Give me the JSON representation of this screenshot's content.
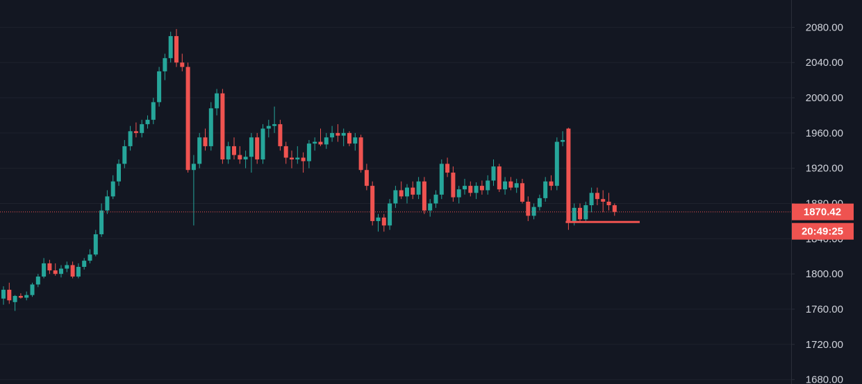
{
  "chart_data": {
    "type": "candlestick",
    "ylim": [
      1675,
      2111
    ],
    "yticks": [
      {
        "value": 1680,
        "label": "1680.00"
      },
      {
        "value": 1720,
        "label": "1720.00"
      },
      {
        "value": 1760,
        "label": "1760.00"
      },
      {
        "value": 1800,
        "label": "1800.00"
      },
      {
        "value": 1840,
        "label": "1840.00"
      },
      {
        "value": 1880,
        "label": "1880.00"
      },
      {
        "value": 1920,
        "label": "1920.00"
      },
      {
        "value": 1960,
        "label": "1960.00"
      },
      {
        "value": 2000,
        "label": "2000.00"
      },
      {
        "value": 2040,
        "label": "2040.00"
      },
      {
        "value": 2080,
        "label": "2080.00"
      }
    ],
    "grid": true,
    "up_color": "#26a69a",
    "down_color": "#ef5350",
    "last_price": 1870.42,
    "countdown": "20:49:25",
    "hline": 1859,
    "ohlc": [
      [
        1772,
        1786,
        1765,
        1782
      ],
      [
        1782,
        1790,
        1766,
        1770
      ],
      [
        1768,
        1776,
        1758,
        1775
      ],
      [
        1775,
        1778,
        1772,
        1773
      ],
      [
        1773,
        1780,
        1770,
        1776
      ],
      [
        1776,
        1790,
        1774,
        1788
      ],
      [
        1788,
        1800,
        1785,
        1797
      ],
      [
        1797,
        1818,
        1795,
        1812
      ],
      [
        1812,
        1816,
        1800,
        1804
      ],
      [
        1804,
        1812,
        1798,
        1800
      ],
      [
        1800,
        1810,
        1796,
        1806
      ],
      [
        1806,
        1814,
        1802,
        1810
      ],
      [
        1810,
        1814,
        1795,
        1797
      ],
      [
        1797,
        1812,
        1795,
        1808
      ],
      [
        1808,
        1818,
        1805,
        1815
      ],
      [
        1815,
        1828,
        1812,
        1822
      ],
      [
        1822,
        1850,
        1820,
        1845
      ],
      [
        1845,
        1880,
        1842,
        1872
      ],
      [
        1872,
        1895,
        1868,
        1888
      ],
      [
        1888,
        1912,
        1885,
        1905
      ],
      [
        1905,
        1930,
        1900,
        1925
      ],
      [
        1925,
        1952,
        1920,
        1945
      ],
      [
        1945,
        1968,
        1940,
        1962
      ],
      [
        1962,
        1972,
        1955,
        1960
      ],
      [
        1960,
        1975,
        1955,
        1970
      ],
      [
        1970,
        1980,
        1965,
        1975
      ],
      [
        1975,
        2000,
        1970,
        1995
      ],
      [
        1995,
        2035,
        1990,
        2030
      ],
      [
        2030,
        2050,
        2020,
        2045
      ],
      [
        2045,
        2075,
        2040,
        2070
      ],
      [
        2070,
        2078,
        2035,
        2040
      ],
      [
        2040,
        2050,
        2030,
        2035
      ],
      [
        2035,
        2040,
        1915,
        1918
      ],
      [
        1918,
        1935,
        1855,
        1925
      ],
      [
        1925,
        1960,
        1920,
        1955
      ],
      [
        1955,
        1965,
        1940,
        1945
      ],
      [
        1945,
        1995,
        1940,
        1988
      ],
      [
        1988,
        2010,
        1980,
        2005
      ],
      [
        2005,
        2010,
        1925,
        1930
      ],
      [
        1930,
        1950,
        1925,
        1945
      ],
      [
        1945,
        1955,
        1930,
        1935
      ],
      [
        1935,
        1945,
        1925,
        1930
      ],
      [
        1930,
        1940,
        1920,
        1933
      ],
      [
        1933,
        1960,
        1915,
        1955
      ],
      [
        1955,
        1960,
        1925,
        1930
      ],
      [
        1930,
        1970,
        1925,
        1965
      ],
      [
        1965,
        1975,
        1955,
        1968
      ],
      [
        1968,
        1990,
        1960,
        1970
      ],
      [
        1970,
        1975,
        1940,
        1945
      ],
      [
        1945,
        1950,
        1925,
        1932
      ],
      [
        1932,
        1940,
        1920,
        1930
      ],
      [
        1930,
        1945,
        1925,
        1932
      ],
      [
        1932,
        1938,
        1915,
        1928
      ],
      [
        1928,
        1952,
        1920,
        1948
      ],
      [
        1948,
        1955,
        1940,
        1950
      ],
      [
        1950,
        1965,
        1945,
        1947
      ],
      [
        1947,
        1960,
        1942,
        1955
      ],
      [
        1955,
        1968,
        1950,
        1960
      ],
      [
        1960,
        1970,
        1950,
        1957
      ],
      [
        1957,
        1965,
        1945,
        1960
      ],
      [
        1960,
        1962,
        1945,
        1948
      ],
      [
        1948,
        1960,
        1940,
        1955
      ],
      [
        1955,
        1958,
        1915,
        1918
      ],
      [
        1918,
        1925,
        1895,
        1900
      ],
      [
        1900,
        1905,
        1855,
        1860
      ],
      [
        1860,
        1868,
        1848,
        1864
      ],
      [
        1864,
        1868,
        1848,
        1855
      ],
      [
        1855,
        1885,
        1850,
        1880
      ],
      [
        1880,
        1900,
        1875,
        1895
      ],
      [
        1895,
        1905,
        1885,
        1888
      ],
      [
        1888,
        1902,
        1880,
        1898
      ],
      [
        1898,
        1905,
        1885,
        1890
      ],
      [
        1890,
        1910,
        1885,
        1905
      ],
      [
        1905,
        1910,
        1868,
        1872
      ],
      [
        1872,
        1885,
        1865,
        1880
      ],
      [
        1880,
        1895,
        1875,
        1890
      ],
      [
        1890,
        1930,
        1885,
        1925
      ],
      [
        1925,
        1932,
        1910,
        1915
      ],
      [
        1915,
        1922,
        1882,
        1887
      ],
      [
        1887,
        1900,
        1880,
        1896
      ],
      [
        1896,
        1908,
        1890,
        1900
      ],
      [
        1900,
        1905,
        1888,
        1892
      ],
      [
        1892,
        1904,
        1885,
        1900
      ],
      [
        1900,
        1906,
        1890,
        1895
      ],
      [
        1895,
        1912,
        1890,
        1906
      ],
      [
        1906,
        1930,
        1900,
        1922
      ],
      [
        1922,
        1925,
        1893,
        1896
      ],
      [
        1896,
        1910,
        1890,
        1905
      ],
      [
        1905,
        1910,
        1895,
        1898
      ],
      [
        1898,
        1908,
        1892,
        1903
      ],
      [
        1903,
        1908,
        1880,
        1882
      ],
      [
        1882,
        1888,
        1860,
        1866
      ],
      [
        1866,
        1880,
        1862,
        1876
      ],
      [
        1876,
        1890,
        1872,
        1886
      ],
      [
        1886,
        1910,
        1882,
        1905
      ],
      [
        1905,
        1912,
        1895,
        1900
      ],
      [
        1900,
        1955,
        1895,
        1950
      ],
      [
        1950,
        1962,
        1945,
        1952
      ],
      [
        1965,
        1966,
        1850,
        1860
      ],
      [
        1860,
        1880,
        1855,
        1875
      ],
      [
        1875,
        1880,
        1858,
        1862
      ],
      [
        1862,
        1882,
        1860,
        1878
      ],
      [
        1878,
        1898,
        1870,
        1892
      ],
      [
        1892,
        1898,
        1878,
        1885
      ],
      [
        1885,
        1895,
        1870,
        1882
      ],
      [
        1882,
        1892,
        1872,
        1878
      ],
      [
        1878,
        1880,
        1866,
        1870.42
      ]
    ]
  }
}
